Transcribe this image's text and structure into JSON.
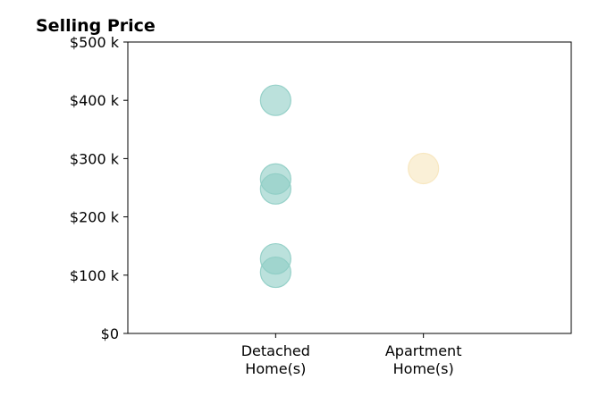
{
  "chart_data": {
    "type": "scatter",
    "title": "Selling Price",
    "xlabel": "",
    "ylabel": "",
    "categories": [
      "Detached\nHome(s)",
      "Apartment\nHome(s)"
    ],
    "xlim": [
      0,
      3
    ],
    "ylim": [
      0,
      500000
    ],
    "yticks": [
      0,
      100000,
      200000,
      300000,
      400000,
      500000
    ],
    "ytick_labels": [
      "$0",
      "$100 k",
      "$200 k",
      "$300 k",
      "$400 k",
      "$500 k"
    ],
    "grid": false,
    "legend": "none",
    "series": [
      {
        "category": "Detached\nHome(s)",
        "color": "#8ecdc4",
        "values": [
          400000,
          265000,
          248000,
          128000,
          105000
        ]
      },
      {
        "category": "Apartment\nHome(s)",
        "color": "#f7e6bd",
        "values": [
          283000
        ]
      }
    ]
  }
}
